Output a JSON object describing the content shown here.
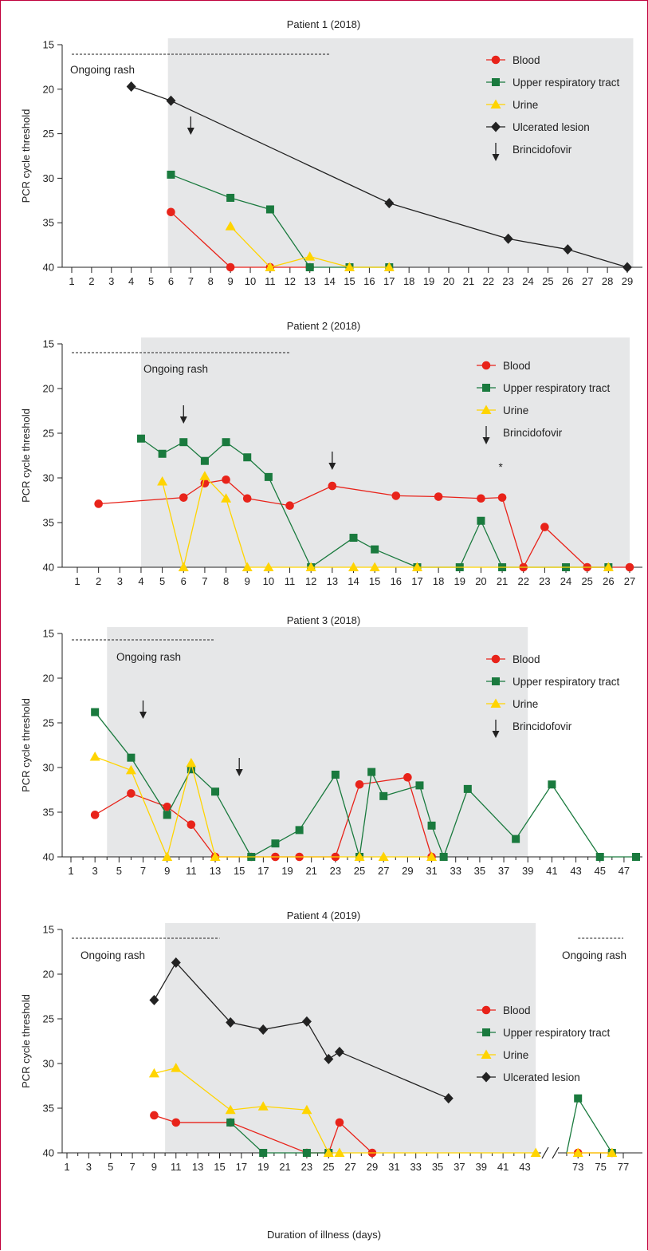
{
  "colors": {
    "blood": "#e8231a",
    "upper_respiratory": "#1a7a3e",
    "urine": "#ffd400",
    "ulcerated": "#222222",
    "shade": "#e6e7e8"
  },
  "x_axis_label": "Duration of illness (days)",
  "chart_data": [
    {
      "type": "line",
      "title": "Patient 1 (2018)",
      "ylabel": "PCR cycle threshold",
      "y_ticks": [
        15,
        20,
        25,
        30,
        35,
        40
      ],
      "x_ticks": [
        1,
        2,
        3,
        4,
        5,
        6,
        7,
        8,
        9,
        10,
        11,
        12,
        13,
        14,
        15,
        16,
        17,
        18,
        19,
        20,
        21,
        22,
        23,
        24,
        25,
        26,
        27,
        28,
        29
      ],
      "x_range": [
        1,
        29
      ],
      "ylim": [
        15,
        40
      ],
      "y_inverted": true,
      "shaded_region": [
        5.85,
        29.3
      ],
      "rash_annotation": {
        "label": "Ongoing rash",
        "start": 1,
        "end": 14
      },
      "brincidofovir_days": [
        7
      ],
      "legend": [
        "Blood",
        "Upper respiratory tract",
        "Urine",
        "Ulcerated lesion",
        "Brincidofovir"
      ],
      "series": [
        {
          "name": "Blood",
          "key": "blood",
          "marker": "circle",
          "x": [
            6,
            9,
            11,
            13
          ],
          "y": [
            33.8,
            40,
            40,
            40
          ]
        },
        {
          "name": "Upper respiratory tract",
          "key": "upper_respiratory",
          "marker": "square",
          "x": [
            6,
            9,
            11,
            13,
            15,
            17
          ],
          "y": [
            29.6,
            32.2,
            33.5,
            40,
            40,
            40
          ]
        },
        {
          "name": "Urine",
          "key": "urine",
          "marker": "triangle",
          "x": [
            9,
            11,
            13,
            15,
            17
          ],
          "y": [
            35.4,
            40,
            38.8,
            40,
            40
          ]
        },
        {
          "name": "Ulcerated lesion",
          "key": "ulcerated",
          "marker": "diamond",
          "x": [
            4,
            6,
            17,
            23,
            26,
            29
          ],
          "y": [
            19.7,
            21.3,
            32.8,
            36.8,
            38,
            40
          ]
        }
      ]
    },
    {
      "type": "line",
      "title": "Patient 2 (2018)",
      "ylabel": "PCR cycle threshold",
      "y_ticks": [
        15,
        20,
        25,
        30,
        35,
        40
      ],
      "x_ticks": [
        1,
        2,
        3,
        4,
        5,
        6,
        7,
        8,
        9,
        10,
        11,
        12,
        13,
        14,
        15,
        16,
        17,
        18,
        19,
        20,
        21,
        22,
        23,
        24,
        25,
        26,
        27
      ],
      "x_range": [
        1,
        27
      ],
      "ylim": [
        15,
        40
      ],
      "y_inverted": true,
      "shaded_region": [
        4,
        27
      ],
      "rash_annotation": {
        "label": "Ongoing rash",
        "start": 1,
        "end": 11
      },
      "brincidofovir_days": [
        6,
        13
      ],
      "asterisk": {
        "x": 21,
        "y": 29.2,
        "label": "*"
      },
      "legend": [
        "Blood",
        "Upper respiratory tract",
        "Urine",
        "Brincidofovir"
      ],
      "series": [
        {
          "name": "Blood",
          "key": "blood",
          "marker": "circle",
          "x": [
            2,
            6,
            7,
            8,
            9,
            11,
            13,
            16,
            18,
            20,
            21,
            22,
            23,
            25,
            27
          ],
          "y": [
            32.9,
            32.2,
            30.6,
            30.2,
            32.3,
            33.1,
            30.9,
            32,
            32.1,
            32.3,
            32.2,
            40,
            35.5,
            40,
            40
          ]
        },
        {
          "name": "Upper respiratory tract",
          "key": "upper_respiratory",
          "marker": "square",
          "x": [
            4,
            5,
            6,
            7,
            8,
            9,
            10,
            12,
            14,
            15,
            17,
            19,
            20,
            21,
            24,
            26
          ],
          "y": [
            25.6,
            27.3,
            26,
            28.1,
            26,
            27.7,
            29.9,
            40,
            36.7,
            38,
            40,
            40,
            34.8,
            40,
            40,
            40
          ]
        },
        {
          "name": "Urine",
          "key": "urine",
          "marker": "triangle",
          "x": [
            5,
            6,
            7,
            8,
            9,
            10,
            12,
            14,
            15,
            17,
            26
          ],
          "y": [
            30.4,
            40,
            29.8,
            32.3,
            40,
            40,
            40,
            40,
            40,
            40,
            40
          ]
        }
      ]
    },
    {
      "type": "line",
      "title": "Patient 3 (2018)",
      "ylabel": "PCR cycle threshold",
      "y_ticks": [
        15,
        20,
        25,
        30,
        35,
        40
      ],
      "x_ticks": [
        1,
        3,
        5,
        7,
        9,
        11,
        13,
        15,
        17,
        19,
        21,
        23,
        25,
        27,
        29,
        31,
        33,
        35,
        37,
        39,
        41,
        43,
        45,
        47
      ],
      "x_minor": 1,
      "x_range": [
        1,
        48
      ],
      "ylim": [
        15,
        40
      ],
      "y_inverted": true,
      "shaded_region": [
        4,
        39
      ],
      "rash_annotation": {
        "label": "Ongoing rash",
        "start": 1,
        "end": 13
      },
      "brincidofovir_days": [
        7,
        15
      ],
      "legend": [
        "Blood",
        "Upper respiratory tract",
        "Urine",
        "Brincidofovir"
      ],
      "series": [
        {
          "name": "Blood",
          "key": "blood",
          "marker": "circle",
          "x": [
            3,
            6,
            9,
            11,
            13,
            16,
            18,
            20,
            23,
            25,
            29,
            31
          ],
          "y": [
            35.3,
            32.9,
            34.4,
            36.4,
            40,
            40,
            40,
            40,
            40,
            31.9,
            31.1,
            40
          ]
        },
        {
          "name": "Upper respiratory tract",
          "key": "upper_respiratory",
          "marker": "square",
          "x": [
            3,
            6,
            9,
            11,
            13,
            16,
            18,
            20,
            23,
            25,
            26,
            27,
            30,
            31,
            32,
            34,
            38,
            41,
            45,
            48
          ],
          "y": [
            23.8,
            28.9,
            35.3,
            30.2,
            32.7,
            40,
            38.5,
            37,
            30.8,
            40,
            30.5,
            33.2,
            32,
            36.5,
            40,
            32.4,
            38,
            31.9,
            40,
            40
          ]
        },
        {
          "name": "Urine",
          "key": "urine",
          "marker": "triangle",
          "x": [
            3,
            6,
            9,
            11,
            13,
            25,
            27,
            31
          ],
          "y": [
            28.8,
            30.3,
            40,
            29.5,
            40,
            40,
            40,
            40
          ]
        }
      ]
    },
    {
      "type": "line",
      "title": "Patient 4 (2019)",
      "ylabel": "PCR cycle threshold",
      "y_ticks": [
        15,
        20,
        25,
        30,
        35,
        40
      ],
      "x_ticks": [
        1,
        3,
        5,
        7,
        9,
        11,
        13,
        15,
        17,
        19,
        21,
        23,
        25,
        27,
        29,
        31,
        33,
        35,
        37,
        39,
        41,
        43,
        73,
        75,
        77
      ],
      "x_minor": 1,
      "x_range": [
        1,
        77
      ],
      "axis_break": [
        44.5,
        71.5
      ],
      "ylim": [
        15,
        40
      ],
      "y_inverted": true,
      "shaded_region": [
        10,
        44
      ],
      "rash_annotation": {
        "label": "Ongoing rash",
        "start": 1,
        "end": 15
      },
      "rash_annotation_2": {
        "label": "Ongoing rash",
        "start": 73,
        "end": 77
      },
      "brincidofovir_days": [],
      "legend": [
        "Blood",
        "Upper respiratory tract",
        "Urine",
        "Ulcerated lesion"
      ],
      "series": [
        {
          "name": "Blood",
          "key": "blood",
          "marker": "circle",
          "x": [
            9,
            11,
            16,
            23,
            25,
            26,
            29
          ],
          "y": [
            35.8,
            36.6,
            36.6,
            40,
            40,
            36.6,
            40
          ],
          "x2": [
            72,
            73,
            76
          ],
          "y2": [
            40,
            40,
            40
          ]
        },
        {
          "name": "Upper respiratory tract",
          "key": "upper_respiratory",
          "marker": "square",
          "x": [
            16,
            19,
            23,
            25
          ],
          "y": [
            36.6,
            40,
            40,
            40
          ],
          "x2": [
            72,
            73,
            76
          ],
          "y2": [
            40,
            33.9,
            40
          ]
        },
        {
          "name": "Urine",
          "key": "urine",
          "marker": "triangle",
          "x": [
            9,
            11,
            16,
            19,
            23,
            25,
            26,
            44
          ],
          "y": [
            31.1,
            30.5,
            35.2,
            34.8,
            35.2,
            40,
            40,
            40
          ],
          "x2": [
            72,
            73,
            76
          ],
          "y2": [
            40,
            40,
            40
          ]
        },
        {
          "name": "Ulcerated lesion",
          "key": "ulcerated",
          "marker": "diamond",
          "x": [
            9,
            11,
            16,
            19,
            23,
            25,
            26,
            36
          ],
          "y": [
            22.9,
            18.7,
            25.4,
            26.2,
            25.3,
            29.5,
            28.7,
            33.9
          ]
        }
      ]
    }
  ]
}
